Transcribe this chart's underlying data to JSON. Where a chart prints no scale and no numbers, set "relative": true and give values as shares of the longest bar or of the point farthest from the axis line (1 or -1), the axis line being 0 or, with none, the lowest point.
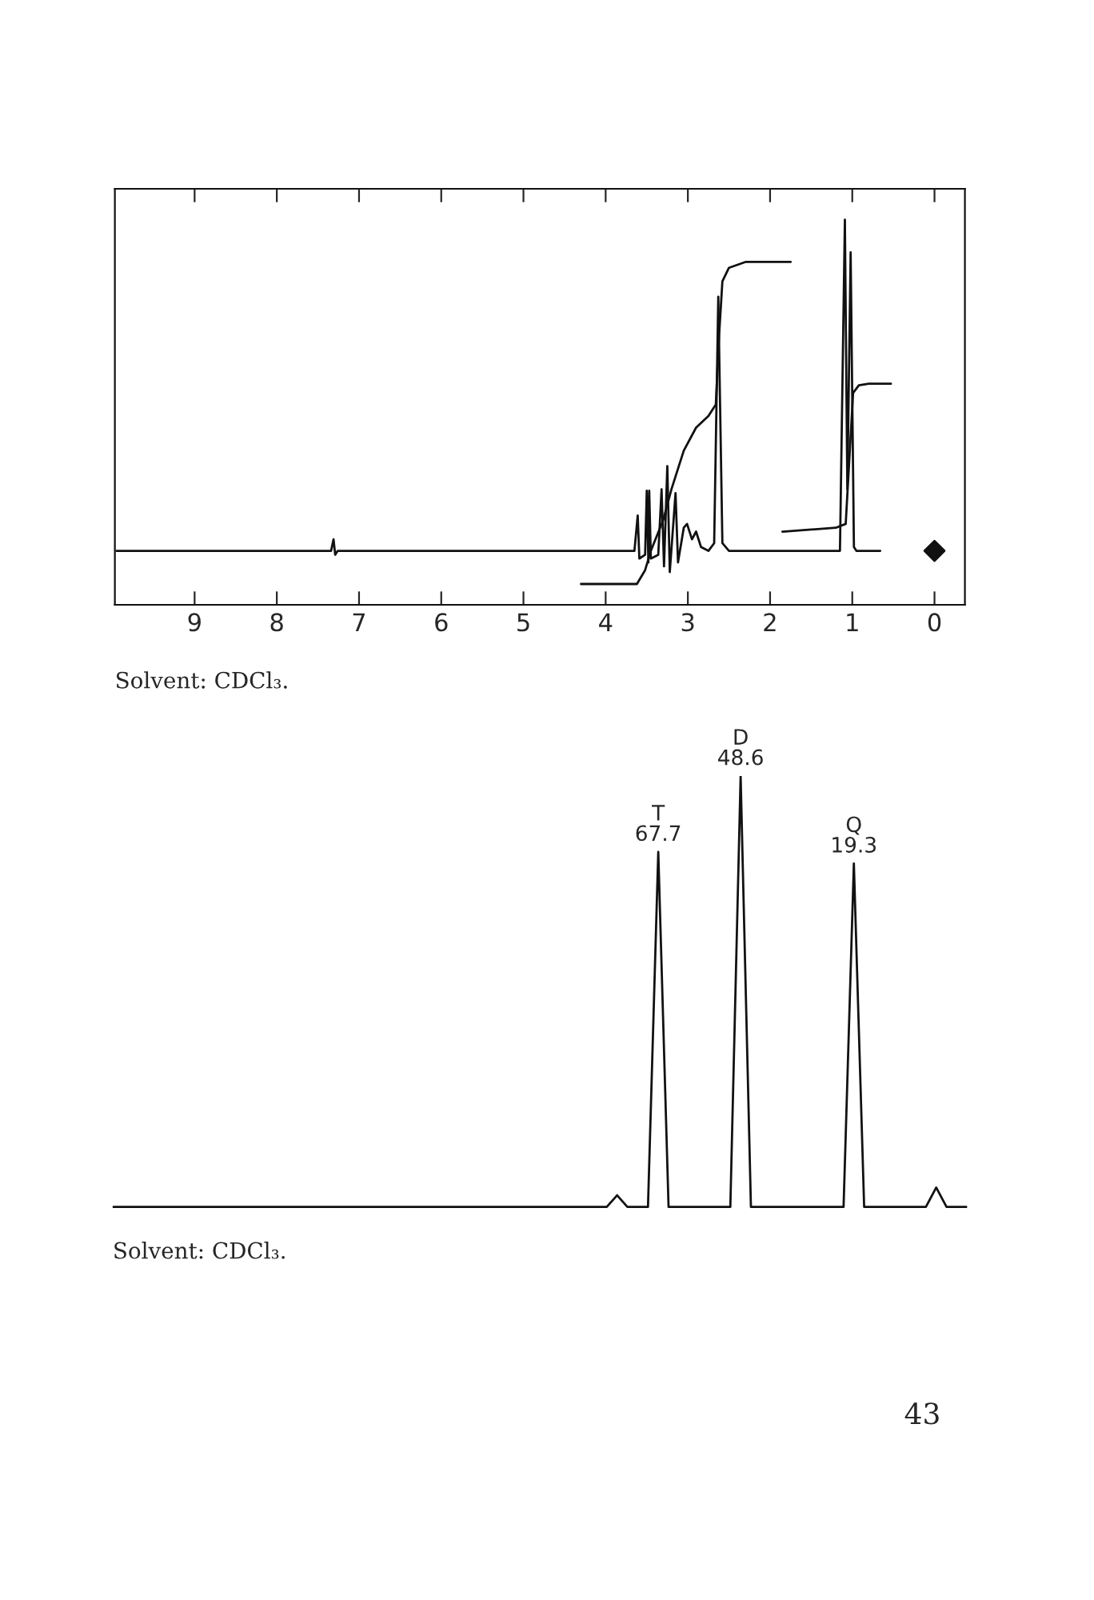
{
  "chart_data": [
    {
      "type": "line",
      "relative": true,
      "xlim": [
        9.97,
        -0.37
      ],
      "xticks": [
        9,
        8,
        7,
        6,
        5,
        4,
        3,
        2,
        1,
        0
      ],
      "tick_labels": "x",
      "grid": false,
      "legend": false,
      "series": [
        {
          "color": "#111111",
          "x": [
            9.95,
            7.34,
            7.31,
            7.29,
            7.26,
            3.65,
            3.61,
            3.59,
            3.52,
            3.5,
            3.48,
            3.47,
            3.45,
            3.36,
            3.32,
            3.29,
            3.25,
            3.22,
            3.15,
            3.12,
            3.05,
            3.01,
            2.95,
            2.9,
            2.84,
            2.75,
            2.68,
            2.63,
            2.58,
            2.5,
            1.15,
            1.09,
            1.06,
            1.02,
            0.98,
            0.95,
            0.66
          ],
          "values": [
            0.14,
            0.14,
            0.17,
            0.13,
            0.14,
            0.14,
            0.232,
            0.12,
            0.13,
            0.296,
            0.11,
            0.296,
            0.12,
            0.13,
            0.3,
            0.1,
            0.36,
            0.085,
            0.29,
            0.11,
            0.2,
            0.21,
            0.17,
            0.19,
            0.15,
            0.14,
            0.16,
            0.8,
            0.16,
            0.14,
            0.14,
            1.0,
            0.3,
            0.915,
            0.15,
            0.14,
            0.14
          ]
        },
        {
          "color": "#111111",
          "x": [
            4.3,
            3.62,
            3.52,
            3.45,
            3.3,
            3.2,
            3.05,
            2.9,
            2.75,
            2.66,
            2.62,
            2.58,
            2.5,
            2.3,
            1.75
          ],
          "values": [
            0.054,
            0.054,
            0.09,
            0.14,
            0.22,
            0.3,
            0.4,
            0.46,
            0.49,
            0.52,
            0.7,
            0.84,
            0.875,
            0.89,
            0.89
          ]
        },
        {
          "color": "#111111",
          "x": [
            1.85,
            1.2,
            1.08,
            1.03,
            0.99,
            0.92,
            0.8,
            0.53
          ],
          "values": [
            0.19,
            0.2,
            0.21,
            0.4,
            0.55,
            0.57,
            0.574,
            0.574
          ]
        },
        {
          "type": "scatter",
          "color": "#111111",
          "marker": "diamond",
          "x": [
            0
          ],
          "values": [
            0.14
          ]
        }
      ],
      "annotations": [
        "Solvent: CDCl₃."
      ]
    },
    {
      "type": "line",
      "relative": true,
      "tick_labels": false,
      "grid": false,
      "legend": false,
      "categories": [
        null,
        null,
        null,
        null,
        null,
        null,
        null,
        null,
        null,
        null,
        null,
        null,
        null,
        null,
        null,
        null,
        null,
        null,
        null,
        null,
        null,
        null,
        null,
        null,
        null,
        null,
        null,
        null,
        null,
        null,
        null,
        null,
        null,
        null,
        null,
        null,
        null,
        null,
        null,
        null,
        null,
        null,
        null,
        null,
        null,
        null,
        null,
        null,
        null,
        null,
        null,
        null,
        null,
        "T\n67.7",
        null,
        null,
        null,
        null,
        null,
        null,
        null,
        "D\n48.6",
        null,
        null,
        null,
        null,
        null,
        null,
        null,
        null,
        null,
        null,
        "Q\n19.3",
        null,
        null,
        null,
        null,
        null,
        null,
        null,
        null,
        null,
        null,
        null
      ],
      "series": [
        {
          "color": "#111111",
          "values": [
            0,
            0,
            0,
            0,
            0,
            0,
            0,
            0,
            0,
            0,
            0,
            0,
            0,
            0,
            0,
            0,
            0,
            0,
            0,
            0,
            0,
            0,
            0,
            0,
            0,
            0,
            0,
            0,
            0,
            0,
            0,
            0,
            0,
            0,
            0,
            0,
            0,
            0,
            0,
            0,
            0,
            0,
            0,
            0,
            0,
            0,
            0,
            0,
            0,
            0.027,
            0,
            0,
            0,
            0.824,
            0,
            0,
            0,
            0,
            0,
            0,
            0,
            1.0,
            0,
            0,
            0,
            0,
            0,
            0,
            0,
            0,
            0,
            0,
            0.797,
            0,
            0,
            0,
            0,
            0,
            0,
            0,
            0.045,
            0,
            0,
            0
          ]
        }
      ],
      "annotations": [
        "Solvent: CDCl₃.",
        "43"
      ]
    }
  ]
}
